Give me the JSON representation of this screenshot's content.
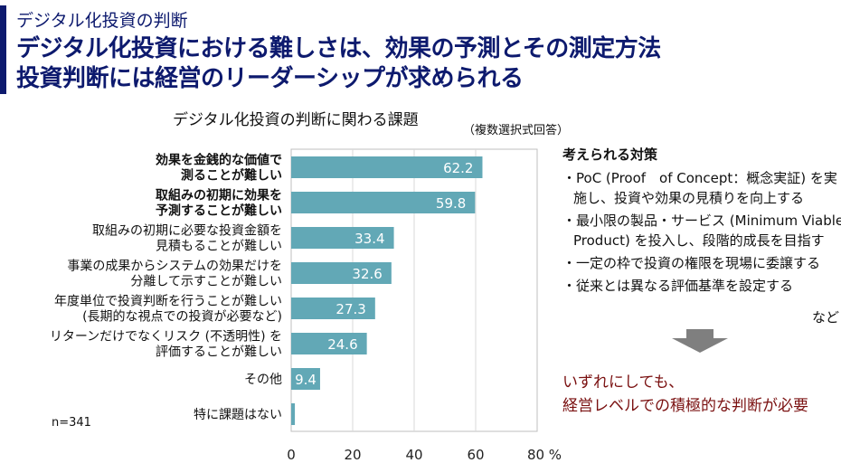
{
  "header": {
    "subtitle": "デジタル化投資の判断",
    "title_line1": "デジタル化投資における難しさは、効果の予測とその測定方法",
    "title_line2": "投資判断には経営のリーダーシップが求められる"
  },
  "chart_data": {
    "type": "bar",
    "orientation": "horizontal",
    "title": "デジタル化投資の判断に関わる課題",
    "note": "（複数選択式回答）",
    "sample": "n=341",
    "categories": [
      [
        "効果を金銭的な価値で",
        "測ることが難しい"
      ],
      [
        "取組みの初期に効果を",
        "予測することが難しい"
      ],
      [
        "取組みの初期に必要な投資金額を",
        "見積もることが難しい"
      ],
      [
        "事業の成果からシステムの効果だけを",
        "分離して示すことが難しい"
      ],
      [
        "年度単位で投資判断を行うことが難しい",
        "(長期的な視点での投資が必要など)"
      ],
      [
        "リターンだけでなくリスク (不透明性) を",
        "評価することが難しい"
      ],
      [
        "その他"
      ],
      [
        "特に課題はない"
      ]
    ],
    "values": [
      62.2,
      59.8,
      33.4,
      32.6,
      27.3,
      24.6,
      9.4,
      1.2
    ],
    "labels": [
      "62.2",
      "59.8",
      "33.4",
      "32.6",
      "27.3",
      "24.6",
      "9.4",
      ""
    ],
    "bold": [
      true,
      true,
      false,
      false,
      false,
      false,
      false,
      false
    ],
    "xlim": [
      0,
      80
    ],
    "xticks": [
      "0",
      "20",
      "40",
      "60",
      "80 %"
    ],
    "grid": true,
    "bar_color": "#62a8b6"
  },
  "right": {
    "heading": "考えられる対策",
    "items": [
      "・PoC (Proof　of Concept：概念実証) を実施し、投資や効果の見積りを向上する",
      "・最小限の製品・サービス (Minimum Viable Product) を投入し、段階的成長を目指す",
      "・一定の枠で投資の権限を現場に委譲する",
      "・従来とは異なる評価基準を設定する"
    ],
    "etc": "など",
    "conclusion_line1": "いずれにしても、",
    "conclusion_line2": "経営レベルでの積極的な判断が必要"
  }
}
